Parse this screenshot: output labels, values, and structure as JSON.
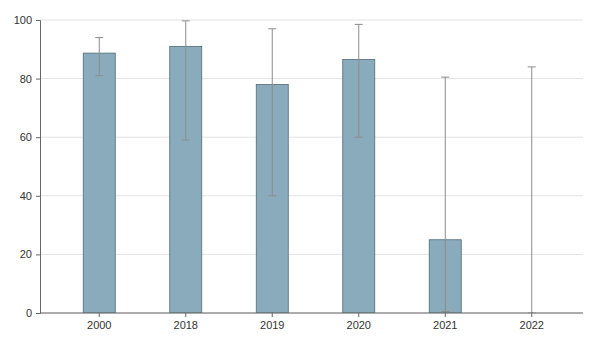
{
  "chart_data": {
    "type": "bar",
    "categories": [
      "2000",
      "2018",
      "2019",
      "2020",
      "2021",
      "2022"
    ],
    "values": [
      88.7,
      91,
      78,
      86.5,
      25,
      0
    ],
    "error_low": [
      81,
      59,
      40,
      60,
      0.5,
      0
    ],
    "error_high": [
      94,
      99.7,
      97,
      98.5,
      80.5,
      84
    ],
    "color": "#8aabbb",
    "ylim": [
      0,
      100
    ],
    "yticks": [
      0,
      20,
      40,
      60,
      80,
      100
    ],
    "grid": true
  }
}
